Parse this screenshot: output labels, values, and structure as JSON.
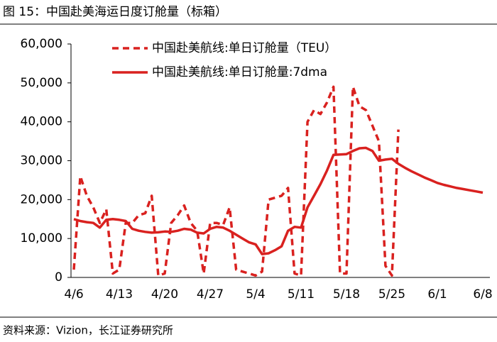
{
  "chart_data": {
    "type": "line",
    "title": "图 15：中国赴美海运日度订舱量（标箱）",
    "source": "资料来源：Vizion，长江证券研究所",
    "categories": [
      "4/6",
      null,
      null,
      null,
      null,
      null,
      null,
      "4/13",
      null,
      null,
      null,
      null,
      null,
      null,
      "4/20",
      null,
      null,
      null,
      null,
      null,
      null,
      "4/27",
      null,
      null,
      null,
      null,
      null,
      null,
      "5/4",
      null,
      null,
      null,
      null,
      null,
      null,
      "5/11",
      null,
      null,
      null,
      null,
      null,
      null,
      "5/18",
      null,
      null,
      null,
      null,
      null,
      null,
      "5/25",
      null,
      null,
      null,
      null,
      null,
      null,
      "6/1",
      null,
      null,
      null,
      null,
      null,
      null,
      "6/8"
    ],
    "series": [
      {
        "name": "中国赴美航线:单日订舱量（TEU）",
        "color": "#d9211f",
        "dashed": true,
        "values": [
          2000,
          26000,
          21000,
          18000,
          14000,
          17500,
          1000,
          2000,
          14000,
          14000,
          16000,
          16500,
          21000,
          500,
          1000,
          14000,
          16000,
          18500,
          14000,
          12000,
          1000,
          14000,
          14000,
          13500,
          18000,
          2000,
          1500,
          1000,
          500,
          1500,
          20000,
          20500,
          21000,
          23000,
          1000,
          500,
          40000,
          43000,
          42000,
          45000,
          49000,
          1000,
          1000,
          49000,
          44000,
          43000,
          39000,
          35000,
          3000,
          500,
          38000,
          null,
          null,
          null,
          null,
          null,
          null,
          null,
          null,
          null,
          null,
          null,
          null,
          null
        ]
      },
      {
        "name": "中国赴美航线:单日订舱量:7dma",
        "color": "#d9211f",
        "dashed": false,
        "values": [
          15000,
          14500,
          14200,
          14000,
          12800,
          14800,
          15000,
          14800,
          14500,
          12500,
          12000,
          11700,
          11500,
          11600,
          11800,
          11700,
          12000,
          12500,
          12300,
          11500,
          11300,
          12500,
          13000,
          12800,
          12000,
          11000,
          10000,
          9000,
          8500,
          6000,
          6200,
          7000,
          8000,
          12000,
          13000,
          12800,
          18000,
          21000,
          24000,
          27500,
          31500,
          31600,
          31700,
          32500,
          33200,
          33300,
          32500,
          30000,
          30300,
          30500,
          29200,
          28200,
          27300,
          26500,
          25700,
          25000,
          24300,
          23800,
          23400,
          23000,
          22700,
          22400,
          22100,
          21800
        ]
      }
    ],
    "ylim": [
      0,
      60000
    ],
    "yticks": [
      {
        "value": 0,
        "label": "0"
      },
      {
        "value": 10000,
        "label": "10,000"
      },
      {
        "value": 20000,
        "label": "20,000"
      },
      {
        "value": 30000,
        "label": "30,000"
      },
      {
        "value": 40000,
        "label": "40,000"
      },
      {
        "value": 50000,
        "label": "50,000"
      },
      {
        "value": 60000,
        "label": "60,000"
      }
    ],
    "legend": "upper left",
    "grid": false
  }
}
